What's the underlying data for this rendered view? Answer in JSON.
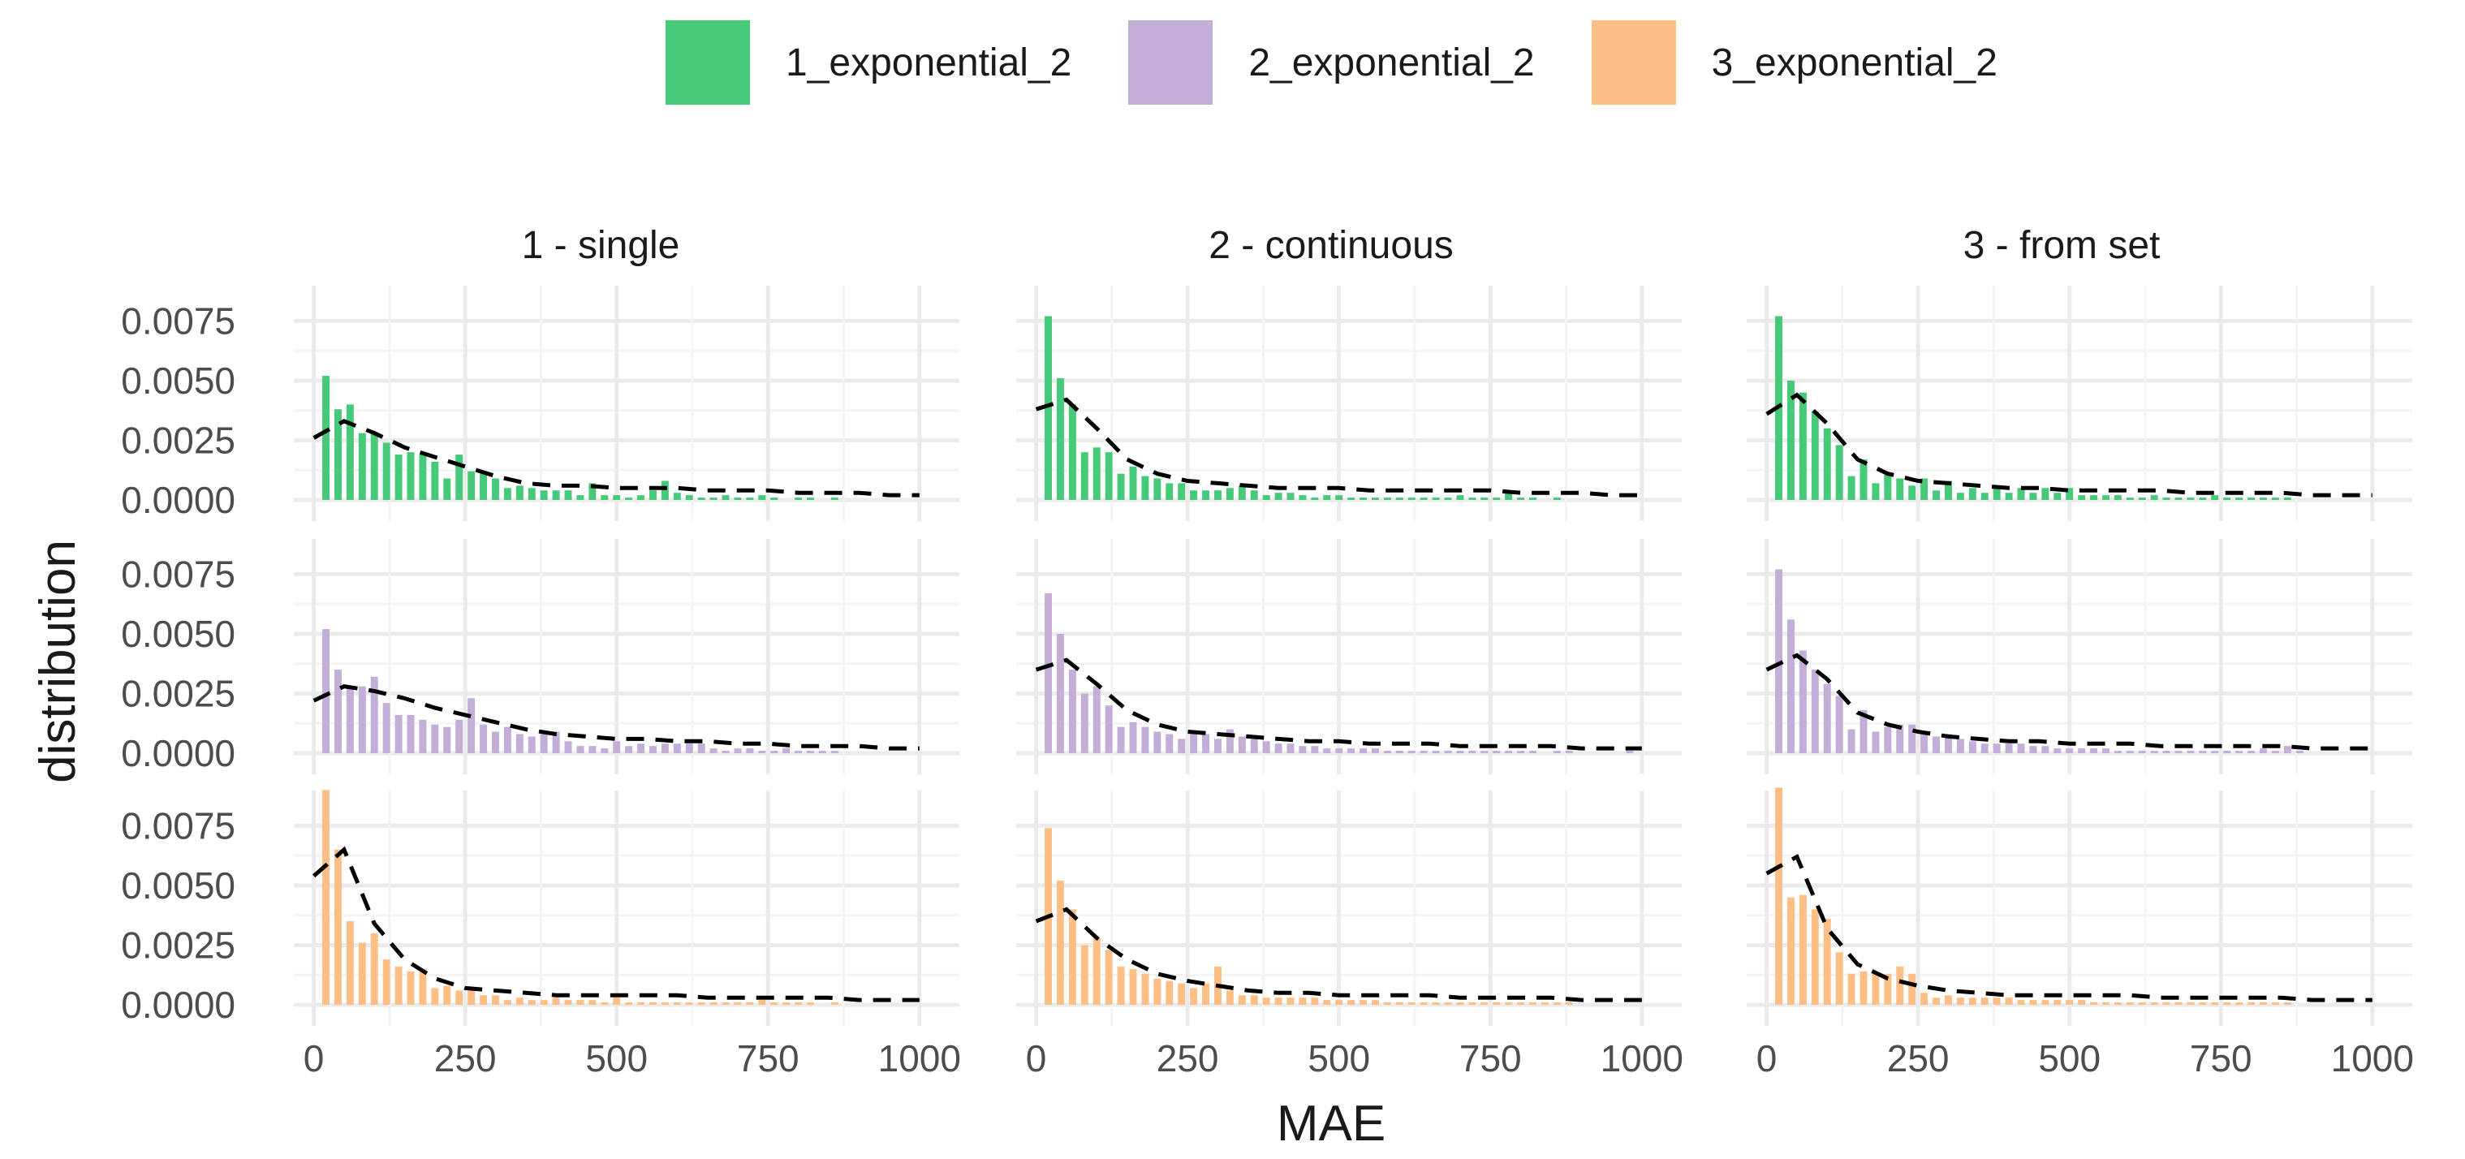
{
  "chart_data": {
    "type": "bar",
    "title": "",
    "xlabel": "MAE",
    "ylabel": "distribution",
    "xlim": [
      0,
      1000
    ],
    "ylim": [
      0,
      0.0085
    ],
    "x_ticks": [
      0,
      250,
      500,
      750,
      1000
    ],
    "x_tick_labels": [
      "0",
      "250",
      "500",
      "750",
      "1000"
    ],
    "y_ticks": [
      0,
      0.0025,
      0.005,
      0.0075
    ],
    "y_tick_labels": [
      "0.0000",
      "0.0025",
      "0.0050",
      "0.0075"
    ],
    "grid": true,
    "legend_position": "top",
    "bin_width": 20,
    "bin_centers": [
      20,
      40,
      60,
      80,
      100,
      120,
      140,
      160,
      180,
      200,
      220,
      240,
      260,
      280,
      300,
      320,
      340,
      360,
      380,
      400,
      420,
      440,
      460,
      480,
      500,
      520,
      540,
      560,
      580,
      600,
      620,
      640,
      660,
      680,
      700,
      720,
      740,
      760,
      780,
      800,
      820,
      840,
      860,
      880,
      900,
      920,
      940,
      960,
      980
    ],
    "density_x": [
      0,
      50,
      100,
      150,
      200,
      250,
      300,
      350,
      400,
      450,
      500,
      550,
      600,
      650,
      700,
      750,
      800,
      850,
      900,
      950,
      1000
    ],
    "columns": [
      "1 - single",
      "2 - continuous",
      "3 - from set"
    ],
    "series": [
      {
        "name": "1_exponential_2",
        "color": "#47c97a"
      },
      {
        "name": "2_exponential_2",
        "color": "#c3aed8"
      },
      {
        "name": "3_exponential_2",
        "color": "#fdbf86"
      }
    ],
    "panels": [
      {
        "row": 0,
        "col": 0,
        "values": [
          0.0052,
          0.0038,
          0.004,
          0.0028,
          0.0028,
          0.0024,
          0.0019,
          0.002,
          0.0019,
          0.0016,
          0.0009,
          0.0019,
          0.0012,
          0.0011,
          0.0009,
          0.0005,
          0.0006,
          0.0005,
          0.0004,
          0.0004,
          0.0004,
          0.0002,
          0.0007,
          0.0002,
          0.0002,
          0.0001,
          0.0002,
          0.0004,
          0.0008,
          0.0003,
          0.0002,
          0.0001,
          0.0001,
          0.0002,
          0.0001,
          0.0001,
          0.0002,
          0.0001,
          0,
          0.0001,
          0.0001,
          0,
          0.0001,
          0,
          0,
          0,
          0,
          0,
          0
        ],
        "density": [
          0.0026,
          0.0033,
          0.0028,
          0.0022,
          0.0018,
          0.0014,
          0.001,
          0.0007,
          0.0006,
          0.0006,
          0.0005,
          0.0005,
          0.0005,
          0.0004,
          0.0004,
          0.0004,
          0.0003,
          0.0003,
          0.0003,
          0.0002,
          0.0002
        ]
      },
      {
        "row": 0,
        "col": 1,
        "values": [
          0.0077,
          0.0051,
          0.004,
          0.002,
          0.0022,
          0.002,
          0.0011,
          0.0014,
          0.001,
          0.0009,
          0.0007,
          0.0007,
          0.0004,
          0.0004,
          0.0004,
          0.0005,
          0.0006,
          0.0004,
          0.0002,
          0.0003,
          0.0003,
          0.0002,
          0.0001,
          0.0002,
          0.0002,
          0.0001,
          0.0001,
          0.0001,
          0.0001,
          0.0001,
          0.0001,
          0.0001,
          0.0001,
          0.0001,
          0.0002,
          0.0001,
          0.0001,
          0.0001,
          0.0003,
          0.0001,
          0.0001,
          0,
          0.0001,
          0,
          0,
          0,
          0,
          0,
          0
        ],
        "density": [
          0.0038,
          0.0042,
          0.003,
          0.0017,
          0.0011,
          0.0008,
          0.0007,
          0.0006,
          0.0005,
          0.0005,
          0.0005,
          0.0004,
          0.0004,
          0.0004,
          0.0004,
          0.0004,
          0.0003,
          0.0003,
          0.0003,
          0.0002,
          0.0002
        ]
      },
      {
        "row": 0,
        "col": 2,
        "values": [
          0.0077,
          0.005,
          0.0045,
          0.0037,
          0.003,
          0.0023,
          0.001,
          0.0017,
          0.0007,
          0.0011,
          0.0009,
          0.0006,
          0.0009,
          0.0004,
          0.0008,
          0.0003,
          0.0005,
          0.0003,
          0.0005,
          0.0003,
          0.0005,
          0.0003,
          0.0005,
          0.0003,
          0.0005,
          0.0002,
          0.0002,
          0.0002,
          0.0002,
          0.0001,
          0.0001,
          0.0002,
          0.0001,
          0.0001,
          0.0001,
          0.0001,
          0.0002,
          0.0001,
          0.0001,
          0.0001,
          0.0001,
          0.0001,
          0.0001,
          0,
          0,
          0,
          0,
          0,
          0
        ],
        "density": [
          0.0036,
          0.0044,
          0.0032,
          0.0017,
          0.0011,
          0.0008,
          0.0007,
          0.0006,
          0.0005,
          0.0005,
          0.0004,
          0.0004,
          0.0004,
          0.0004,
          0.0003,
          0.0003,
          0.0003,
          0.0003,
          0.0002,
          0.0002,
          0.0002
        ]
      },
      {
        "row": 1,
        "col": 0,
        "values": [
          0.0052,
          0.0035,
          0.0028,
          0.0028,
          0.0032,
          0.0021,
          0.0016,
          0.0016,
          0.0014,
          0.0012,
          0.0011,
          0.0014,
          0.0023,
          0.0012,
          0.0009,
          0.0011,
          0.0008,
          0.0007,
          0.0008,
          0.0009,
          0.0005,
          0.0003,
          0.0003,
          0.0002,
          0.0005,
          0.0003,
          0.0004,
          0.0003,
          0.0004,
          0.0004,
          0.0004,
          0.0004,
          0.0002,
          0.0001,
          0.0002,
          0.0002,
          0.0001,
          0.0001,
          0.0002,
          0.0001,
          0.0001,
          0.0001,
          0.0001,
          0,
          0,
          0,
          0,
          0,
          0
        ],
        "density": [
          0.0022,
          0.0028,
          0.0026,
          0.0023,
          0.0019,
          0.0016,
          0.0013,
          0.001,
          0.0008,
          0.0007,
          0.0006,
          0.0006,
          0.0005,
          0.0005,
          0.0004,
          0.0004,
          0.0003,
          0.0003,
          0.0003,
          0.0002,
          0.0002
        ]
      },
      {
        "row": 1,
        "col": 1,
        "values": [
          0.0067,
          0.005,
          0.0035,
          0.0025,
          0.0028,
          0.002,
          0.0011,
          0.0013,
          0.0011,
          0.0009,
          0.0008,
          0.0006,
          0.0008,
          0.0008,
          0.0006,
          0.001,
          0.0007,
          0.0006,
          0.0005,
          0.0004,
          0.0004,
          0.0003,
          0.0003,
          0.0002,
          0.0002,
          0.0002,
          0.0002,
          0.0002,
          0.0001,
          0.0001,
          0.0001,
          0.0001,
          0.0001,
          0.0001,
          0.0001,
          0.0001,
          0.0001,
          0.0001,
          0.0001,
          0.0001,
          0.0001,
          0,
          0.0001,
          0.0001,
          0,
          0,
          0,
          0,
          0.0001
        ],
        "density": [
          0.0035,
          0.0039,
          0.0029,
          0.0018,
          0.0012,
          0.0009,
          0.0008,
          0.0007,
          0.0006,
          0.0005,
          0.0005,
          0.0004,
          0.0004,
          0.0004,
          0.0003,
          0.0003,
          0.0003,
          0.0003,
          0.0002,
          0.0002,
          0.0002
        ]
      },
      {
        "row": 1,
        "col": 2,
        "values": [
          0.0077,
          0.0056,
          0.0043,
          0.0035,
          0.0029,
          0.0024,
          0.001,
          0.0018,
          0.0009,
          0.0011,
          0.0012,
          0.0012,
          0.0009,
          0.0007,
          0.0008,
          0.0006,
          0.0005,
          0.0004,
          0.0004,
          0.0004,
          0.0004,
          0.0003,
          0.0003,
          0.0002,
          0.0002,
          0.0002,
          0.0002,
          0.0002,
          0.0001,
          0.0001,
          0.0001,
          0.0001,
          0.0001,
          0.0001,
          0.0001,
          0.0001,
          0.0001,
          0.0001,
          0.0001,
          0.0001,
          0.0002,
          0.0001,
          0.0003,
          0.0001,
          0,
          0,
          0,
          0,
          0
        ],
        "density": [
          0.0035,
          0.0041,
          0.0031,
          0.0017,
          0.0012,
          0.0009,
          0.0007,
          0.0006,
          0.0005,
          0.0005,
          0.0004,
          0.0004,
          0.0004,
          0.0003,
          0.0003,
          0.0003,
          0.0003,
          0.0003,
          0.0002,
          0.0002,
          0.0002
        ]
      },
      {
        "row": 2,
        "col": 0,
        "values": [
          0.009,
          0.0065,
          0.0035,
          0.0026,
          0.003,
          0.0019,
          0.0016,
          0.0014,
          0.0015,
          0.0007,
          0.0008,
          0.0006,
          0.0007,
          0.0004,
          0.0004,
          0.0002,
          0.0003,
          0.0002,
          0.0002,
          0.0003,
          0.0002,
          0.0002,
          0.0002,
          0.0001,
          0.0003,
          0.0001,
          0.0001,
          0.0001,
          0.0001,
          0.0001,
          0.0001,
          0.0001,
          0.0001,
          0.0001,
          0.0001,
          0.0001,
          0.0002,
          0.0001,
          0.0001,
          0.0001,
          0.0001,
          0,
          0.0001,
          0,
          0,
          0,
          0,
          0,
          0
        ],
        "density": [
          0.0054,
          0.0065,
          0.0034,
          0.0019,
          0.0011,
          0.0007,
          0.0006,
          0.0005,
          0.0004,
          0.0004,
          0.0004,
          0.0004,
          0.0004,
          0.0003,
          0.0003,
          0.0003,
          0.0003,
          0.0003,
          0.0002,
          0.0002,
          0.0002
        ]
      },
      {
        "row": 2,
        "col": 1,
        "values": [
          0.0074,
          0.0052,
          0.004,
          0.0025,
          0.0028,
          0.0023,
          0.0016,
          0.0015,
          0.0013,
          0.0011,
          0.001,
          0.0009,
          0.0007,
          0.0009,
          0.0016,
          0.0006,
          0.0004,
          0.0004,
          0.0003,
          0.0003,
          0.0003,
          0.0003,
          0.0003,
          0.0002,
          0.0002,
          0.0002,
          0.0002,
          0.0002,
          0.0001,
          0.0001,
          0.0001,
          0.0001,
          0.0001,
          0.0001,
          0.0001,
          0.0001,
          0.0001,
          0.0001,
          0.0001,
          0.0001,
          0.0001,
          0.0001,
          0.0001,
          0.0001,
          0,
          0,
          0,
          0,
          0
        ],
        "density": [
          0.0035,
          0.004,
          0.0028,
          0.0019,
          0.0013,
          0.001,
          0.0008,
          0.0006,
          0.0005,
          0.0005,
          0.0004,
          0.0004,
          0.0004,
          0.0004,
          0.0003,
          0.0003,
          0.0003,
          0.0003,
          0.0002,
          0.0002,
          0.0002
        ]
      },
      {
        "row": 2,
        "col": 2,
        "values": [
          0.0091,
          0.0045,
          0.0046,
          0.004,
          0.0036,
          0.0022,
          0.0013,
          0.0014,
          0.0013,
          0.0013,
          0.0016,
          0.0013,
          0.0005,
          0.0003,
          0.0004,
          0.0003,
          0.0003,
          0.0003,
          0.0003,
          0.0003,
          0.0002,
          0.0002,
          0.0002,
          0.0002,
          0.0002,
          0.0002,
          0.0001,
          0.0001,
          0.0001,
          0.0001,
          0.0001,
          0.0001,
          0.0001,
          0.0001,
          0.0001,
          0.0001,
          0.0001,
          0.0001,
          0.0001,
          0.0001,
          0.0001,
          0.0001,
          0.0001,
          0,
          0,
          0,
          0,
          0,
          0
        ],
        "density": [
          0.0055,
          0.0062,
          0.0032,
          0.0017,
          0.0011,
          0.0008,
          0.0006,
          0.0005,
          0.0004,
          0.0004,
          0.0004,
          0.0004,
          0.0004,
          0.0003,
          0.0003,
          0.0003,
          0.0003,
          0.0003,
          0.0002,
          0.0002,
          0.0002
        ]
      }
    ]
  }
}
